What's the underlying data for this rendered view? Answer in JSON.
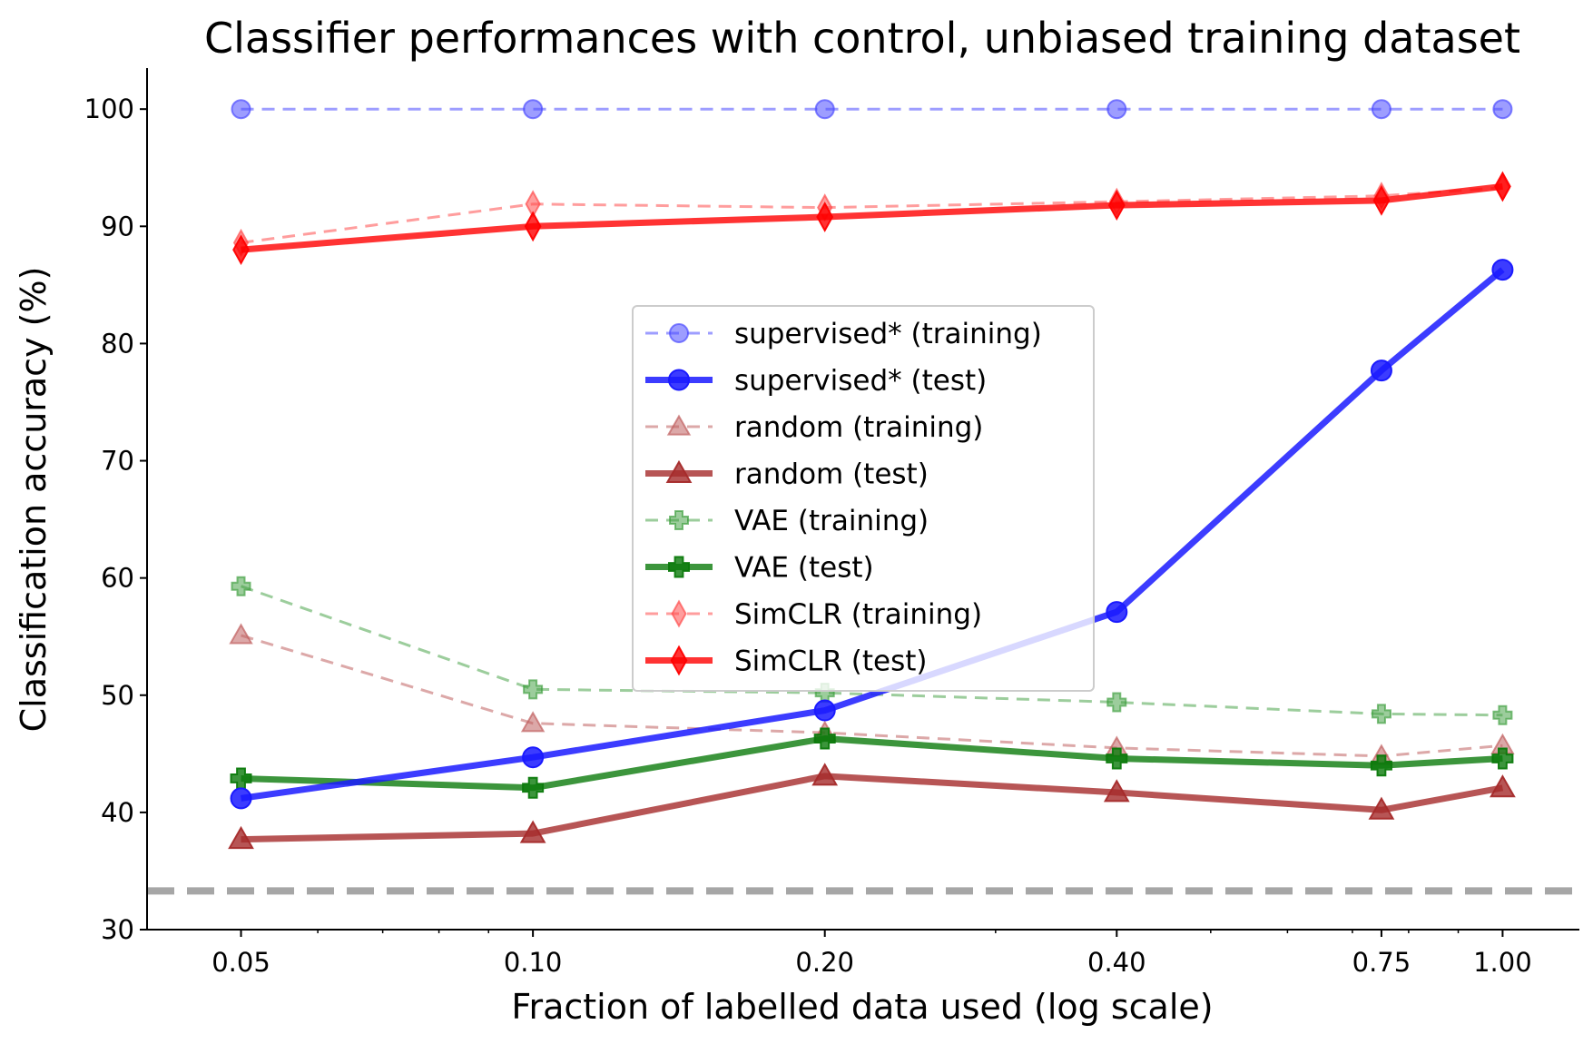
{
  "chart_data": {
    "type": "line",
    "title": "Classifier performances with control, unbiased training dataset",
    "xlabel": "Fraction of labelled data used (log scale)",
    "ylabel": "Classification accuracy (%)",
    "xscale": "log",
    "xlim": [
      0.04,
      1.2
    ],
    "ylim": [
      30,
      103.5
    ],
    "x": [
      0.05,
      0.1,
      0.2,
      0.4,
      0.75,
      1.0
    ],
    "x_tick_labels": [
      "0.05",
      "0.10",
      "0.20",
      "0.40",
      "0.75",
      "1.00"
    ],
    "y_ticks": [
      30,
      40,
      50,
      60,
      70,
      80,
      90,
      100
    ],
    "y_tick_labels": [
      "30",
      "40",
      "50",
      "60",
      "70",
      "80",
      "90",
      "100"
    ],
    "chance_level": 33.3,
    "legend_position": "center",
    "series": [
      {
        "name": "supervised* (training)",
        "values": [
          100,
          100,
          100,
          100,
          100,
          100
        ],
        "color": "#4d4dff",
        "dashed": true,
        "marker": "circle",
        "opacity": 0.55
      },
      {
        "name": "supervised* (test)",
        "values": [
          41.2,
          44.7,
          48.7,
          57.1,
          77.7,
          86.3
        ],
        "color": "#1a1aff",
        "dashed": false,
        "marker": "circle",
        "opacity": 0.85
      },
      {
        "name": "random (training)",
        "values": [
          55.1,
          47.6,
          46.8,
          45.5,
          44.8,
          45.7
        ],
        "color": "#c06060",
        "dashed": true,
        "marker": "triangle",
        "opacity": 0.55
      },
      {
        "name": "random (test)",
        "values": [
          37.7,
          38.2,
          43.1,
          41.7,
          40.2,
          42.1
        ],
        "color": "#a52a2a",
        "dashed": false,
        "marker": "triangle",
        "opacity": 0.8
      },
      {
        "name": "VAE (training)",
        "values": [
          59.3,
          50.5,
          50.2,
          49.4,
          48.4,
          48.3
        ],
        "color": "#3a9c3a",
        "dashed": true,
        "marker": "plus",
        "opacity": 0.5
      },
      {
        "name": "VAE (test)",
        "values": [
          42.9,
          42.1,
          46.3,
          44.6,
          44.0,
          44.6
        ],
        "color": "#0b7a0b",
        "dashed": false,
        "marker": "plus",
        "opacity": 0.8
      },
      {
        "name": "SimCLR (training)",
        "values": [
          88.6,
          91.9,
          91.6,
          92.1,
          92.6,
          93.3
        ],
        "color": "#ff4d4d",
        "dashed": true,
        "marker": "diamond",
        "opacity": 0.55
      },
      {
        "name": "SimCLR (test)",
        "values": [
          88.0,
          90.0,
          90.8,
          91.8,
          92.2,
          93.4
        ],
        "color": "#ff0000",
        "dashed": false,
        "marker": "diamond",
        "opacity": 0.8
      }
    ]
  }
}
